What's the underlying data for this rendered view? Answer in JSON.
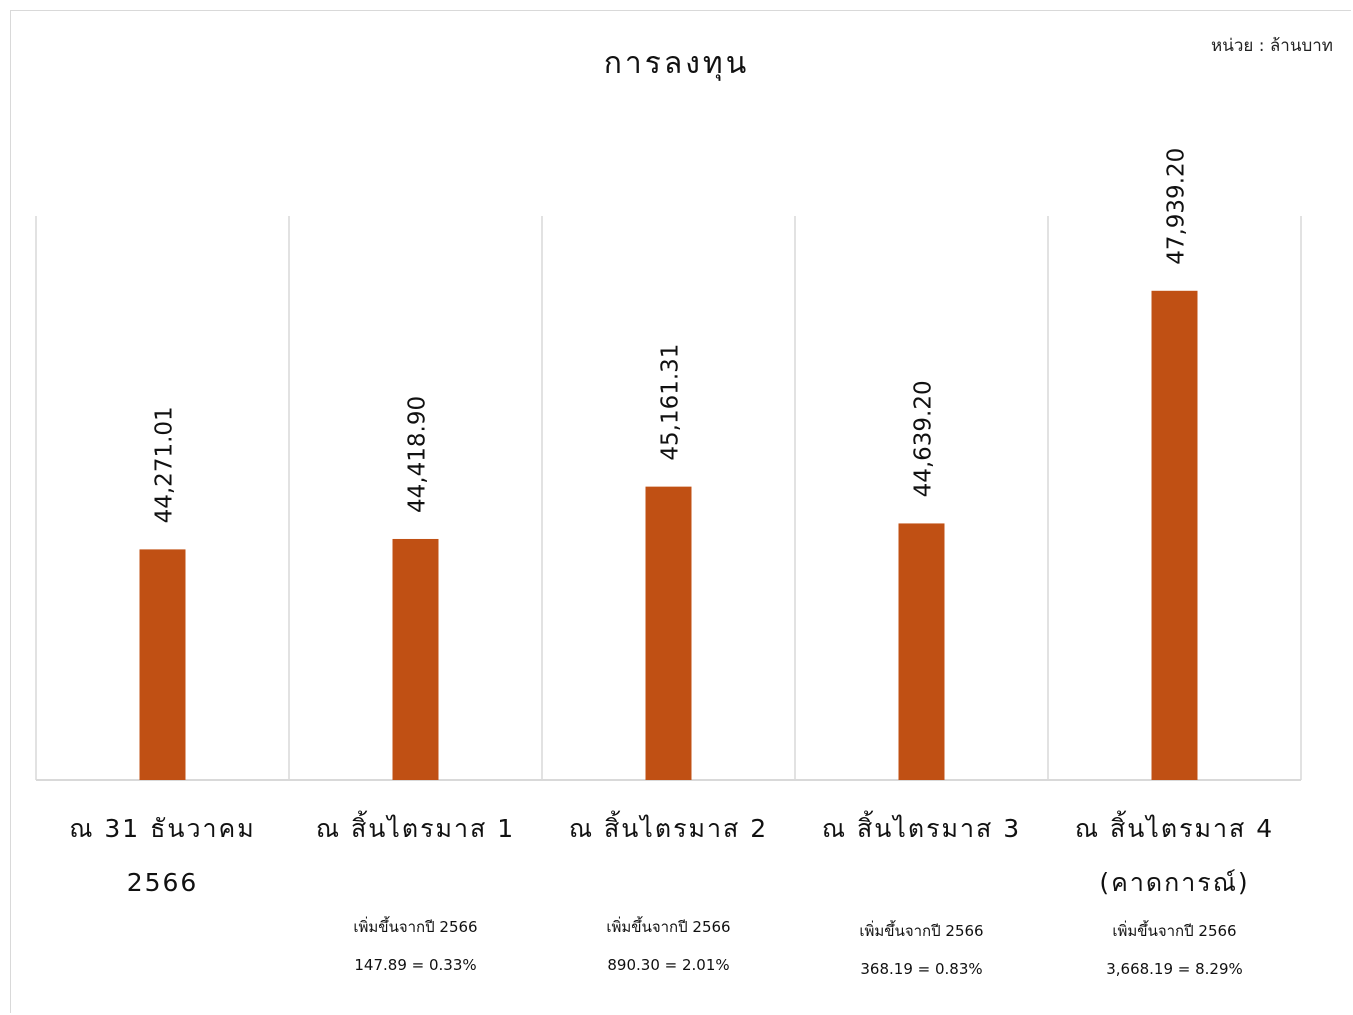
{
  "unit_label": "หน่วย : ล้านบาท",
  "colors": {
    "bar": "#c05014",
    "gridline": "#d9d9d9"
  },
  "chart_data": {
    "type": "bar",
    "title": "การลงทุน",
    "xlabel": "",
    "ylabel": "",
    "ylim": [
      41000,
      49000
    ],
    "grid": "vertical category separators",
    "categories": [
      "ณ 31 ธันวาคม 2566",
      "ณ สิ้นไตรมาส 1",
      "ณ สิ้นไตรมาส 2",
      "ณ สิ้นไตรมาส 3",
      "ณ สิ้นไตรมาส 4 (คาดการณ์)"
    ],
    "category_lines": [
      [
        "ณ 31 ธันวาคม",
        "2566"
      ],
      [
        "ณ สิ้นไตรมาส 1"
      ],
      [
        "ณ สิ้นไตรมาส 2"
      ],
      [
        "ณ สิ้นไตรมาส 3"
      ],
      [
        "ณ สิ้นไตรมาส 4",
        "(คาดการณ์)"
      ]
    ],
    "values": [
      44271.01,
      44418.9,
      45161.31,
      44639.2,
      47939.2
    ],
    "data_labels": [
      "44,271.01",
      "44,418.90",
      "45,161.31",
      "44,639.20",
      "47,939.20"
    ],
    "annotations": [
      null,
      [
        "เพิ่มขึ้นจากปี 2566",
        "147.89 = 0.33%"
      ],
      [
        "เพิ่มขึ้นจากปี 2566",
        "890.30 = 2.01%"
      ],
      [
        "เพิ่มขึ้นจากปี 2566",
        "368.19 = 0.83%"
      ],
      [
        "เพิ่มขึ้นจากปี 2566",
        "3,668.19 = 8.29%"
      ]
    ]
  }
}
